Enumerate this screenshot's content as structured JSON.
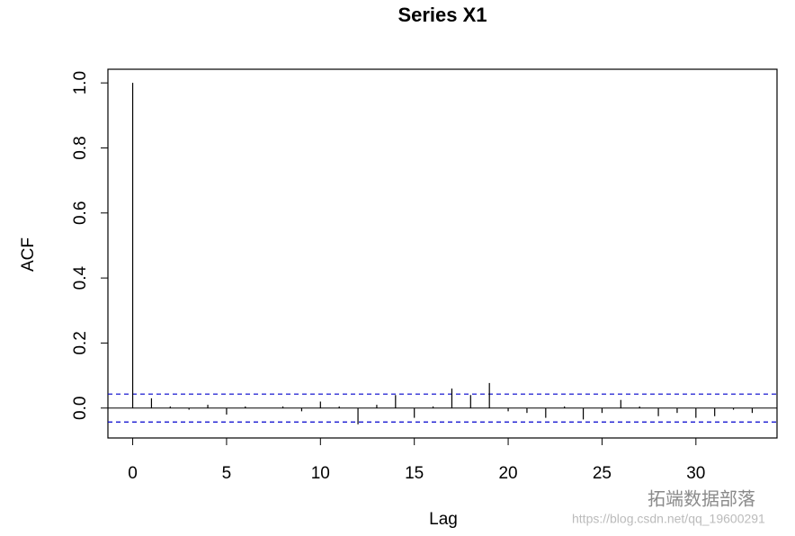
{
  "chart_data": {
    "type": "acf",
    "title": "Series  X1",
    "xlabel": "Lag",
    "ylabel": "ACF",
    "x": [
      0,
      1,
      2,
      3,
      4,
      5,
      6,
      7,
      8,
      9,
      10,
      11,
      12,
      13,
      14,
      15,
      16,
      17,
      18,
      19,
      20,
      21,
      22,
      23,
      24,
      25,
      26,
      27,
      28,
      29,
      30,
      31,
      32,
      33
    ],
    "values": [
      1.0,
      0.03,
      0.005,
      -0.005,
      0.01,
      -0.02,
      0.005,
      0,
      0.005,
      -0.01,
      0.02,
      0.005,
      -0.05,
      0.01,
      0.04,
      -0.03,
      0.005,
      0.06,
      0.04,
      0.077,
      -0.01,
      -0.015,
      -0.03,
      0.005,
      -0.035,
      -0.015,
      0.025,
      0.005,
      -0.025,
      -0.015,
      -0.03,
      -0.025,
      -0.005,
      -0.015
    ],
    "color": "#000000",
    "ci": [
      0.043,
      -0.043
    ],
    "ci_color": "#0000cc",
    "xlim": [
      -1.32,
      34.32
    ],
    "ylim": [
      -0.092,
      1.042
    ],
    "xticks": [
      0,
      5,
      10,
      15,
      20,
      25,
      30
    ],
    "yticks": [
      {
        "value": 0,
        "label": "0.0"
      },
      0.2,
      0.4,
      0.6,
      0.8,
      {
        "value": 1,
        "label": "1.0"
      }
    ],
    "watermark": [
      "拓端数据部落",
      "https://blog.csdn.net/qq_19600291"
    ]
  }
}
